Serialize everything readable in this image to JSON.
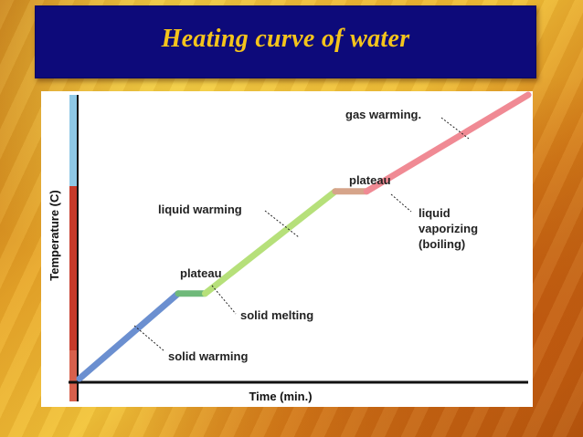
{
  "slide": {
    "title": "Heating curve of water"
  },
  "chart_data": {
    "type": "line",
    "title": "Heating curve of water",
    "xlabel": "Time (min.)",
    "ylabel": "Temperature (C)",
    "x": [
      0,
      22,
      28,
      57,
      64,
      100
    ],
    "y": [
      0,
      30,
      30,
      66,
      66,
      100
    ],
    "segments": [
      {
        "label": "solid warming",
        "x": [
          0,
          22
        ],
        "y": [
          0,
          30
        ],
        "color": "#6b8fd0"
      },
      {
        "label": "solid melting",
        "x": [
          22,
          28
        ],
        "y": [
          30,
          30
        ],
        "color": "#6fb97a"
      },
      {
        "label": "liquid warming",
        "x": [
          28,
          57
        ],
        "y": [
          30,
          66
        ],
        "color": "#b6e07a"
      },
      {
        "label": "liquid vaporizing (boiling)",
        "x": [
          57,
          64
        ],
        "y": [
          66,
          66
        ],
        "color": "#d6a48a"
      },
      {
        "label": "gas warming",
        "x": [
          64,
          100
        ],
        "y": [
          66,
          100
        ],
        "color": "#f08a94"
      }
    ],
    "annotations": [
      {
        "text": "solid warming"
      },
      {
        "text": "plateau"
      },
      {
        "text": "solid melting"
      },
      {
        "text": "liquid warming"
      },
      {
        "text": "plateau"
      },
      {
        "text": "liquid"
      },
      {
        "text": "vaporizing"
      },
      {
        "text": "(boiling)"
      },
      {
        "text": "gas warming."
      }
    ],
    "xlim": [
      0,
      100
    ],
    "ylim": [
      0,
      100
    ],
    "grid": false,
    "legend": "none",
    "thermometer_colors": {
      "top": "#8ec8e6",
      "middle": "#c63a2a",
      "bottom": "#c63a2a"
    }
  },
  "colors": {
    "title_bar": "#0d0a7a",
    "title_text": "#f4c41c",
    "panel": "#ffffff"
  }
}
